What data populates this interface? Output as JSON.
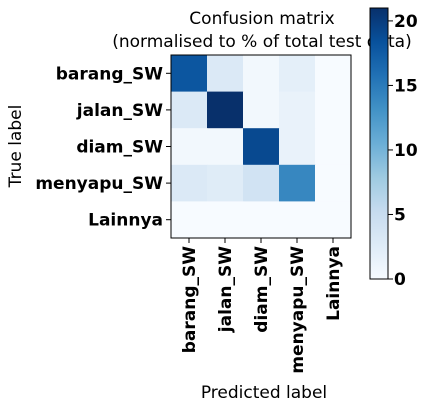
{
  "chart_data": {
    "type": "heatmap",
    "title": "Confusion matrix",
    "subtitle": "(normalised to % of total test data)",
    "xlabel": "Predicted label",
    "ylabel": "True label",
    "row_labels": [
      "barang_SW",
      "jalan_SW",
      "diam_SW",
      "menyapu_SW",
      "Lainnya"
    ],
    "col_labels": [
      "barang_SW",
      "jalan_SW",
      "diam_SW",
      "menyapu_SW",
      "Lainnya"
    ],
    "values": [
      [
        18,
        3,
        0.5,
        2,
        0
      ],
      [
        3,
        21,
        0.5,
        1.5,
        0
      ],
      [
        0.5,
        0.5,
        19,
        1.5,
        0
      ],
      [
        3,
        2.5,
        4,
        14,
        0
      ],
      [
        0,
        0,
        0,
        0,
        0
      ]
    ],
    "colorbar": {
      "min": 0,
      "max": 21,
      "ticks": [
        0,
        5,
        10,
        15,
        20
      ],
      "colormap": "Blues"
    }
  }
}
